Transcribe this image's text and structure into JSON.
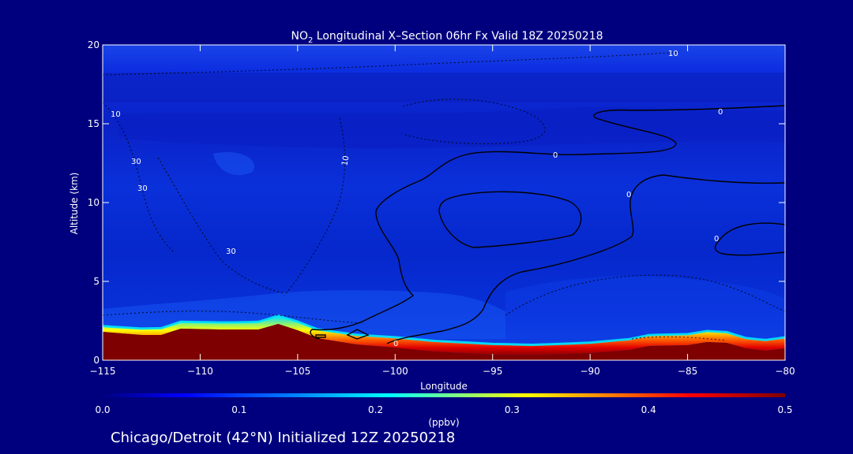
{
  "chart_data": {
    "type": "heatmap",
    "title_main": "NO",
    "title_subscript": "2",
    "title_rest": " Longitudinal X–Section 06hr  Fx Valid 18Z 20250218",
    "xlabel": "Longitude",
    "ylabel": "Altitude (km)",
    "xlim": [
      -115,
      -80
    ],
    "ylim": [
      0,
      20
    ],
    "x_ticks": [
      -115,
      -110,
      -105,
      -100,
      -95,
      -90,
      -85,
      -80
    ],
    "x_tick_labels": [
      "−115",
      "−110",
      "−105",
      "−100",
      "−95",
      "−90",
      "−85",
      "−80"
    ],
    "y_ticks": [
      0,
      5,
      10,
      15,
      20
    ],
    "y_tick_labels": [
      "0",
      "5",
      "10",
      "15",
      "20"
    ],
    "colorbar": {
      "label": "(ppbv)",
      "range": [
        0.0,
        0.5
      ],
      "ticks": [
        0.0,
        0.1,
        0.2,
        0.3,
        0.4,
        0.5
      ],
      "tick_labels": [
        "0.0",
        "0.1",
        "0.2",
        "0.3",
        "0.4",
        "0.5"
      ],
      "colors": [
        "#00007f",
        "#0000ff",
        "#0080ff",
        "#00ffff",
        "#80ff80",
        "#ffff00",
        "#ff8000",
        "#ff0000",
        "#7f0000"
      ]
    },
    "terrain_km": [
      [
        -115,
        1.8
      ],
      [
        -113,
        1.6
      ],
      [
        -112,
        1.6
      ],
      [
        -111,
        2.0
      ],
      [
        -109,
        1.95
      ],
      [
        -107,
        1.95
      ],
      [
        -106,
        2.3
      ],
      [
        -105,
        1.9
      ],
      [
        -104,
        1.4
      ],
      [
        -102,
        1.0
      ],
      [
        -100,
        0.8
      ],
      [
        -98,
        0.55
      ],
      [
        -95,
        0.35
      ],
      [
        -93,
        0.3
      ],
      [
        -90,
        0.45
      ],
      [
        -88,
        0.65
      ],
      [
        -87,
        0.9
      ],
      [
        -85,
        0.95
      ],
      [
        -84,
        1.15
      ],
      [
        -83,
        1.1
      ],
      [
        -82,
        0.75
      ],
      [
        -81,
        0.6
      ],
      [
        -80,
        0.75
      ]
    ],
    "surface_layer_ppbv": [
      [
        -115,
        0.12
      ],
      [
        -112,
        0.2
      ],
      [
        -108,
        0.22
      ],
      [
        -106,
        0.3
      ],
      [
        -104,
        0.35
      ],
      [
        -102,
        0.4
      ],
      [
        -100,
        0.45
      ],
      [
        -97,
        0.48
      ],
      [
        -94,
        0.48
      ],
      [
        -91,
        0.45
      ],
      [
        -88,
        0.48
      ],
      [
        -86,
        0.5
      ],
      [
        -84,
        0.5
      ],
      [
        -82,
        0.45
      ],
      [
        -80,
        0.5
      ]
    ],
    "contour_labels": [
      "10",
      "0",
      "0",
      "10",
      "30",
      "30",
      "10",
      "30",
      "0",
      "0",
      "0"
    ],
    "footer": "Chicago/Detroit (42°N) Initialized 12Z 20250218"
  }
}
